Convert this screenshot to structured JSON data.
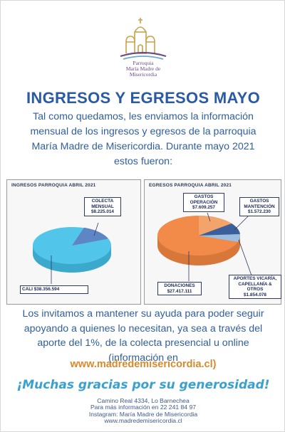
{
  "logo": {
    "line1": "Parroquia",
    "line2": "María Madre de",
    "line3": "Misericordia"
  },
  "title": "INGRESOS Y EGRESOS MAYO",
  "intro": "Tal como quedamos, les enviamos la información mensual de los ingresos y egresos de la parroquia María Madre de Misericordia. Durante mayo 2021 estos fueron:",
  "panels": {
    "income_title": "INGRESOS PARROQUIA ABRIL 2021",
    "expense_title": "EGRESOS PARROQUIA ABRIL 2021"
  },
  "chart_data": [
    {
      "type": "pie",
      "title": "INGRESOS PARROQUIA ABRIL 2021",
      "slices": [
        {
          "label": "COLECTA MENSUAL",
          "value": 8225014,
          "value_text": "$8.225.014",
          "color": "#5f86c4"
        },
        {
          "label": "CALI",
          "value": 38356594,
          "value_text": "$38.356.594",
          "color": "#52c6ea"
        }
      ]
    },
    {
      "type": "pie",
      "title": "EGRESOS PARROQUIA ABRIL 2021",
      "slices": [
        {
          "label": "GASTOS OPERACIÓN",
          "value": 7609257,
          "value_text": "$7.609.257",
          "color": "#f2a46a"
        },
        {
          "label": "GASTOS MANTENCIÓN",
          "value": 1572230,
          "value_text": "$1.572.230",
          "color": "#3b5f9a"
        },
        {
          "label": "APORTES VICARÍA, CAPELLANÍA & OTROS",
          "value": 1854078,
          "value_text": "$1.854.078",
          "color": "#9bbde0"
        },
        {
          "label": "DONACIONES",
          "value": 27417111,
          "value_text": "$27.417.111",
          "color": "#f28a4a"
        }
      ]
    }
  ],
  "body": "Los invitamos a mantener su ayuda para poder seguir apoyando a quienes lo necesitan, ya sea a través del aporte del 1%, de la colecta presencial u online (información en",
  "website": "www.madredemisericordia.cl)",
  "thanks": "¡Muchas gracias por su generosidad!",
  "footer": {
    "line1": "Camino Real 4334, Lo Barnechea",
    "line2": "Para más información en 22 241 84 97",
    "line3": "Instagram: María Madre de Misericordia",
    "line4": "www.madredemisericordia.cl"
  },
  "colors": {
    "title": "#2a5aa3",
    "text": "#2f5f9f",
    "website": "#d6892d",
    "thanks": "#3aa0cf"
  }
}
